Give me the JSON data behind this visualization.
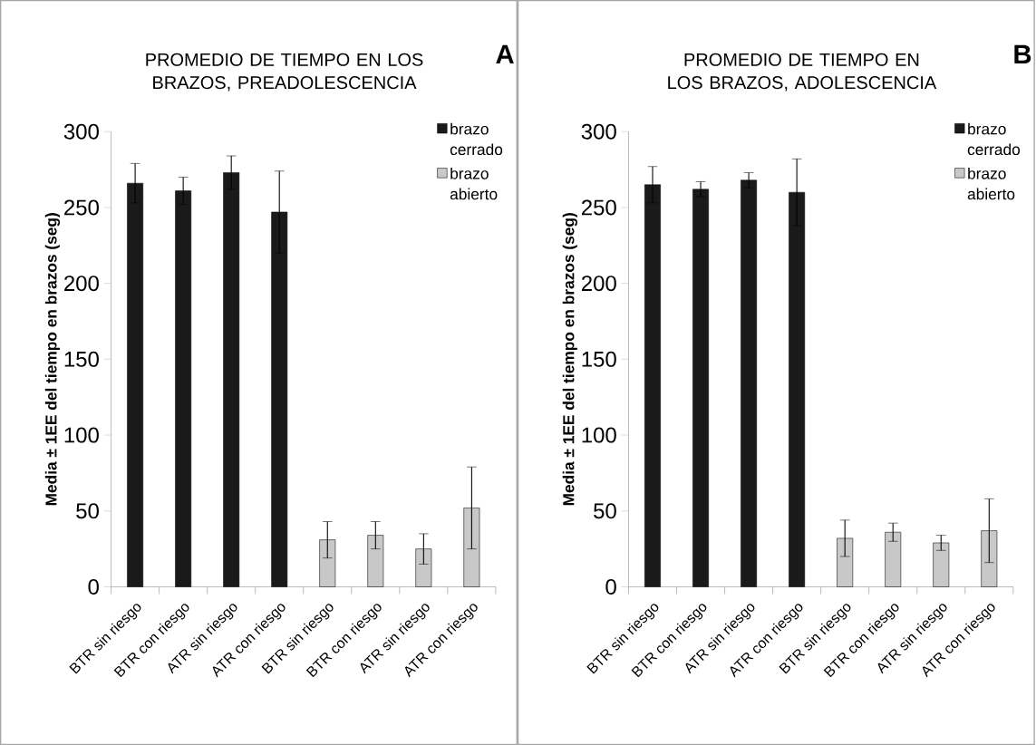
{
  "chart_data": [
    {
      "type": "bar",
      "title": "PROMEDIO DE TIEMPO EN LOS BRAZOS, PREADOLESCENCIA",
      "ylabel": "Media ± 1EE del tiempo en brazos (seg)",
      "annotations": [
        "A"
      ],
      "categories": [
        "BTR sin riesgo",
        "BTR con riesgo",
        "ATR sin riesgo",
        "ATR con riesgo",
        "BTR sin riesgo",
        "BTR con riesgo",
        "ATR sin riesgo",
        "ATR con riesgo"
      ],
      "series": [
        {
          "name": "brazo cerrado",
          "color": "#1a1a1a",
          "values": [
            266,
            261,
            273,
            247,
            null,
            null,
            null,
            null
          ],
          "errors": [
            13,
            9,
            11,
            27,
            null,
            null,
            null,
            null
          ]
        },
        {
          "name": "brazo abierto",
          "color": "#c8c8c8",
          "values": [
            null,
            null,
            null,
            null,
            31,
            34,
            25,
            52
          ],
          "errors": [
            null,
            null,
            null,
            null,
            12,
            9,
            10,
            27
          ]
        }
      ],
      "ylim": [
        0,
        300
      ],
      "yticks": [
        0,
        50,
        100,
        150,
        200,
        250,
        300
      ],
      "legend": "top right"
    },
    {
      "type": "bar",
      "title": "PROMEDIO DE TIEMPO EN LOS BRAZOS, ADOLESCENCIA",
      "ylabel": "Media ± 1EE del tiempo en brazos (seg)",
      "annotations": [
        "B"
      ],
      "categories": [
        "BTR sin riesgo",
        "BTR con riesgo",
        "ATR sin riesgo",
        "ATR con riesgo",
        "BTR sin riesgo",
        "BTR con riesgo",
        "ATR sin riesgo",
        "ATR con riesgo"
      ],
      "series": [
        {
          "name": "brazo cerrado",
          "color": "#1a1a1a",
          "values": [
            265,
            262,
            268,
            260,
            null,
            null,
            null,
            null
          ],
          "errors": [
            12,
            5,
            5,
            22,
            null,
            null,
            null,
            null
          ]
        },
        {
          "name": "brazo abierto",
          "color": "#c8c8c8",
          "values": [
            null,
            null,
            null,
            null,
            32,
            36,
            29,
            37
          ],
          "errors": [
            null,
            null,
            null,
            null,
            12,
            6,
            5,
            21
          ]
        }
      ],
      "ylim": [
        0,
        300
      ],
      "yticks": [
        0,
        50,
        100,
        150,
        200,
        250,
        300
      ],
      "legend": "top right"
    }
  ]
}
